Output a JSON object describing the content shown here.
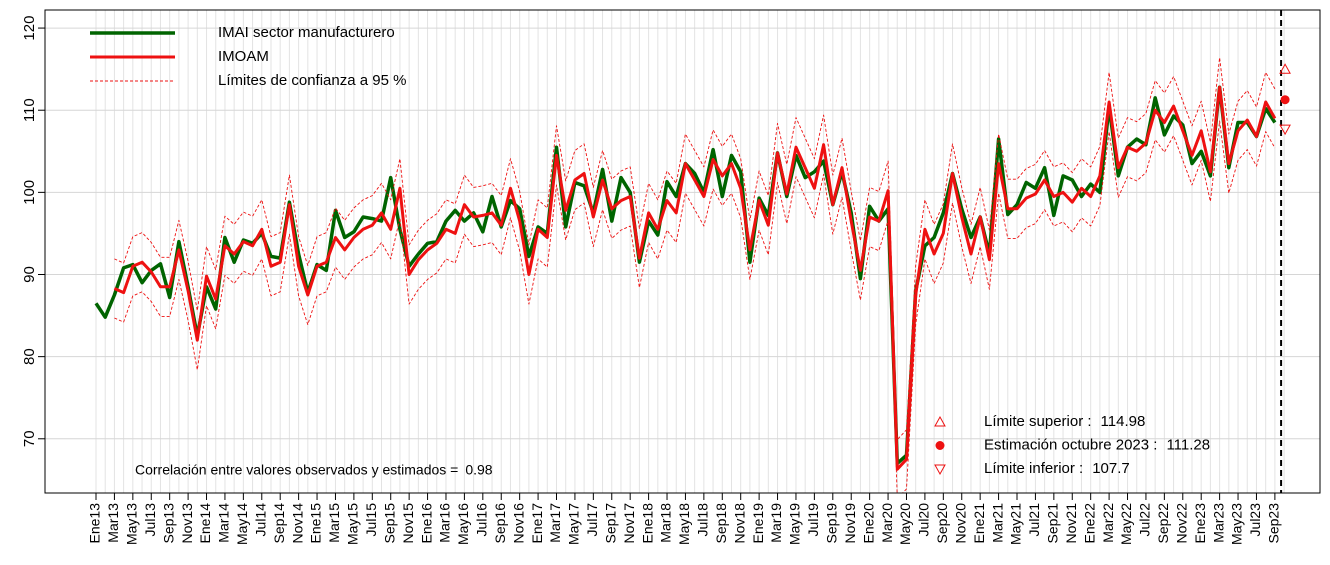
{
  "chart_data": {
    "type": "line",
    "categories": [
      "Ene13",
      null,
      "Mar13",
      null,
      "May13",
      null,
      "Jul13",
      null,
      "Sep13",
      null,
      "Nov13",
      null,
      "Ene14",
      null,
      "Mar14",
      null,
      "May14",
      null,
      "Jul14",
      null,
      "Sep14",
      null,
      "Nov14",
      null,
      "Ene15",
      null,
      "Mar15",
      null,
      "May15",
      null,
      "Jul15",
      null,
      "Sep15",
      null,
      "Nov15",
      null,
      "Ene16",
      null,
      "Mar16",
      null,
      "May16",
      null,
      "Jul16",
      null,
      "Sep16",
      null,
      "Nov16",
      null,
      "Ene17",
      null,
      "Mar17",
      null,
      "May17",
      null,
      "Jul17",
      null,
      "Sep17",
      null,
      "Nov17",
      null,
      "Ene18",
      null,
      "Mar18",
      null,
      "May18",
      null,
      "Jul18",
      null,
      "Sep18",
      null,
      "Nov18",
      null,
      "Ene19",
      null,
      "Mar19",
      null,
      "May19",
      null,
      "Jul19",
      null,
      "Sep19",
      null,
      "Nov19",
      null,
      "Ene20",
      null,
      "Mar20",
      null,
      "May20",
      null,
      "Jul20",
      null,
      "Sep20",
      null,
      "Nov20",
      null,
      "Ene21",
      null,
      "Mar21",
      null,
      "May21",
      null,
      "Jul21",
      null,
      "Sep21",
      null,
      "Nov21",
      null,
      "Ene22",
      null,
      "Mar22",
      null,
      "May22",
      null,
      "Jul22",
      null,
      "Sep22",
      null,
      "Nov22",
      null,
      "Ene23",
      null,
      "Mar23",
      null,
      "May23",
      null,
      "Jul23",
      null,
      "Sep23",
      null
    ],
    "series": [
      {
        "name": "IMAI sector manufacturero",
        "color": "#006400",
        "width": 3.5,
        "dash": false,
        "values": [
          86.5,
          84.8,
          87.5,
          90.8,
          91.2,
          89.0,
          90.5,
          91.3,
          87.2,
          94.0,
          88.5,
          82.5,
          88.5,
          85.8,
          94.5,
          91.5,
          94.2,
          93.8,
          95.0,
          92.2,
          92.0,
          98.8,
          92.5,
          87.8,
          91.2,
          90.5,
          97.8,
          94.5,
          95.2,
          97.0,
          96.8,
          96.5,
          101.8,
          95.5,
          91.0,
          92.5,
          93.8,
          94.0,
          96.5,
          97.8,
          96.5,
          97.5,
          95.2,
          99.5,
          95.8,
          99.0,
          98.0,
          92.2,
          95.8,
          95.0,
          105.5,
          95.8,
          101.2,
          100.8,
          97.5,
          102.8,
          96.5,
          101.8,
          100.0,
          91.5,
          96.5,
          94.8,
          101.3,
          99.5,
          103.5,
          102.3,
          100.0,
          105.2,
          99.5,
          104.5,
          102.5,
          91.5,
          99.3,
          97.2,
          104.8,
          99.5,
          104.5,
          101.8,
          102.5,
          103.8,
          98.5,
          102.5,
          97.5,
          89.5,
          98.3,
          96.5,
          98.0,
          67.0,
          68.0,
          88.0,
          93.5,
          94.5,
          97.5,
          102.3,
          98.0,
          94.5,
          97.0,
          92.5,
          106.5,
          97.3,
          98.5,
          101.2,
          100.5,
          103.0,
          97.2,
          102.0,
          101.5,
          99.5,
          101.0,
          100.0,
          110.5,
          102.0,
          105.5,
          106.5,
          105.8,
          111.5,
          107.0,
          109.3,
          108.2,
          103.5,
          105.0,
          102.0,
          112.8,
          103.0,
          108.5,
          108.5,
          106.8,
          110.2,
          108.5,
          null
        ]
      },
      {
        "name": "IMOAM",
        "color": "#ee1111",
        "width": 3,
        "dash": false,
        "values": [
          null,
          null,
          88.3,
          87.8,
          91.0,
          91.5,
          90.3,
          88.5,
          88.5,
          93.0,
          88.0,
          82.0,
          89.8,
          87.0,
          93.5,
          92.5,
          94.0,
          93.5,
          95.5,
          91.0,
          91.5,
          98.5,
          91.0,
          87.5,
          91.0,
          91.5,
          94.5,
          93.0,
          94.5,
          95.5,
          96.0,
          97.5,
          95.5,
          100.5,
          90.0,
          91.8,
          93.0,
          93.8,
          95.5,
          95.0,
          98.5,
          97.0,
          97.2,
          97.5,
          96.0,
          100.5,
          96.5,
          90.0,
          95.5,
          94.5,
          104.5,
          97.8,
          101.5,
          102.3,
          97.0,
          101.5,
          98.0,
          99.0,
          99.5,
          92.0,
          97.5,
          95.5,
          99.0,
          97.5,
          103.5,
          101.5,
          99.5,
          104.0,
          102.0,
          103.5,
          100.5,
          93.0,
          99.0,
          96.0,
          104.8,
          99.8,
          105.5,
          103.0,
          100.5,
          105.8,
          98.5,
          103.0,
          96.5,
          90.5,
          97.0,
          96.5,
          100.2,
          66.3,
          67.5,
          87.5,
          95.5,
          92.5,
          95.0,
          102.3,
          97.0,
          92.5,
          97.0,
          91.8,
          103.5,
          98.0,
          98.0,
          99.3,
          99.8,
          101.5,
          99.5,
          100.0,
          98.8,
          100.5,
          99.5,
          102.0,
          111.0,
          103.0,
          105.5,
          105.0,
          106.0,
          110.0,
          108.5,
          110.5,
          107.5,
          104.5,
          107.5,
          102.5,
          112.8,
          103.5,
          107.5,
          108.8,
          106.8,
          111.0,
          109.0,
          null
        ]
      },
      {
        "name": "Límites de confianza a 95 %",
        "color": "#ee1111",
        "width": 0.9,
        "dash": true,
        "values": [
          null,
          null,
          91.9,
          91.4,
          94.6,
          95.1,
          93.9,
          92.1,
          92.1,
          96.6,
          91.6,
          85.6,
          93.4,
          90.6,
          97.1,
          96.1,
          97.6,
          97.1,
          99.1,
          94.6,
          95.1,
          102.1,
          94.6,
          91.1,
          94.6,
          95.1,
          98.1,
          96.6,
          98.1,
          99.1,
          99.6,
          101.1,
          99.1,
          104.1,
          93.6,
          95.4,
          96.6,
          97.4,
          99.1,
          98.6,
          102.1,
          100.6,
          100.8,
          101.1,
          99.6,
          104.1,
          100.1,
          93.6,
          99.1,
          98.1,
          108.1,
          101.4,
          105.1,
          105.9,
          100.6,
          105.1,
          101.6,
          102.6,
          103.1,
          95.6,
          101.1,
          99.1,
          102.6,
          101.1,
          107.1,
          105.1,
          103.1,
          107.6,
          105.6,
          107.1,
          104.1,
          96.6,
          102.6,
          99.6,
          108.4,
          103.4,
          109.1,
          106.6,
          104.1,
          109.4,
          102.1,
          106.6,
          100.1,
          94.1,
          100.6,
          100.1,
          103.8,
          69.9,
          71.1,
          91.1,
          99.1,
          96.1,
          98.6,
          105.9,
          100.6,
          96.1,
          100.6,
          95.4,
          107.1,
          101.6,
          101.6,
          102.9,
          103.4,
          105.1,
          103.1,
          103.6,
          102.4,
          104.1,
          103.1,
          105.6,
          114.6,
          106.6,
          109.1,
          108.6,
          109.6,
          113.6,
          112.1,
          114.1,
          111.1,
          108.1,
          111.1,
          106.1,
          116.4,
          107.1,
          111.1,
          112.4,
          110.4,
          114.6,
          112.6,
          null
        ]
      },
      {
        "color": "#ee1111",
        "width": 0.9,
        "dash": true,
        "values": [
          null,
          null,
          84.7,
          84.2,
          87.4,
          87.9,
          86.7,
          84.9,
          84.9,
          89.4,
          84.4,
          78.4,
          86.2,
          83.4,
          89.9,
          88.9,
          90.4,
          89.9,
          91.9,
          87.4,
          87.9,
          94.9,
          87.4,
          83.9,
          87.4,
          87.9,
          90.9,
          89.4,
          90.9,
          91.9,
          92.4,
          93.9,
          91.9,
          96.9,
          86.4,
          88.2,
          89.4,
          90.2,
          91.9,
          91.4,
          94.9,
          93.4,
          93.6,
          93.9,
          92.4,
          96.9,
          92.9,
          86.4,
          91.9,
          90.9,
          100.9,
          94.2,
          97.9,
          98.7,
          93.4,
          97.9,
          94.4,
          95.4,
          95.9,
          88.4,
          93.9,
          91.9,
          95.4,
          93.9,
          99.9,
          97.9,
          95.9,
          100.4,
          98.4,
          99.9,
          96.9,
          89.4,
          95.4,
          92.4,
          101.2,
          96.2,
          101.9,
          99.4,
          96.9,
          102.2,
          94.9,
          99.4,
          92.9,
          86.9,
          93.4,
          92.9,
          96.6,
          62.7,
          63.9,
          83.9,
          91.9,
          88.9,
          91.4,
          98.7,
          93.4,
          88.9,
          93.4,
          88.2,
          99.9,
          94.4,
          94.4,
          95.7,
          96.2,
          97.9,
          95.9,
          96.4,
          95.2,
          96.9,
          95.9,
          98.4,
          107.4,
          99.4,
          101.9,
          101.4,
          102.4,
          106.4,
          104.9,
          106.9,
          103.9,
          100.9,
          103.9,
          98.9,
          108.7,
          99.9,
          103.9,
          105.2,
          103.2,
          107.4,
          105.4,
          null
        ]
      }
    ],
    "ylim": [
      63.4,
      122.2
    ],
    "yticks": [
      70,
      80,
      90,
      100,
      110,
      120
    ],
    "grid": true,
    "estimate": {
      "color": "#ee1111",
      "items": [
        {
          "label": "Límite superior :",
          "value": 114.98,
          "marker": "triangle-up"
        },
        {
          "label": "Estimación octubre 2023 :",
          "value": 111.28,
          "marker": "dot"
        },
        {
          "label": "Límite inferior :",
          "value": 107.7,
          "marker": "triangle-down"
        }
      ]
    },
    "correlation": {
      "label": "Correlación entre valores observados y estimados =",
      "value": 0.98
    }
  }
}
